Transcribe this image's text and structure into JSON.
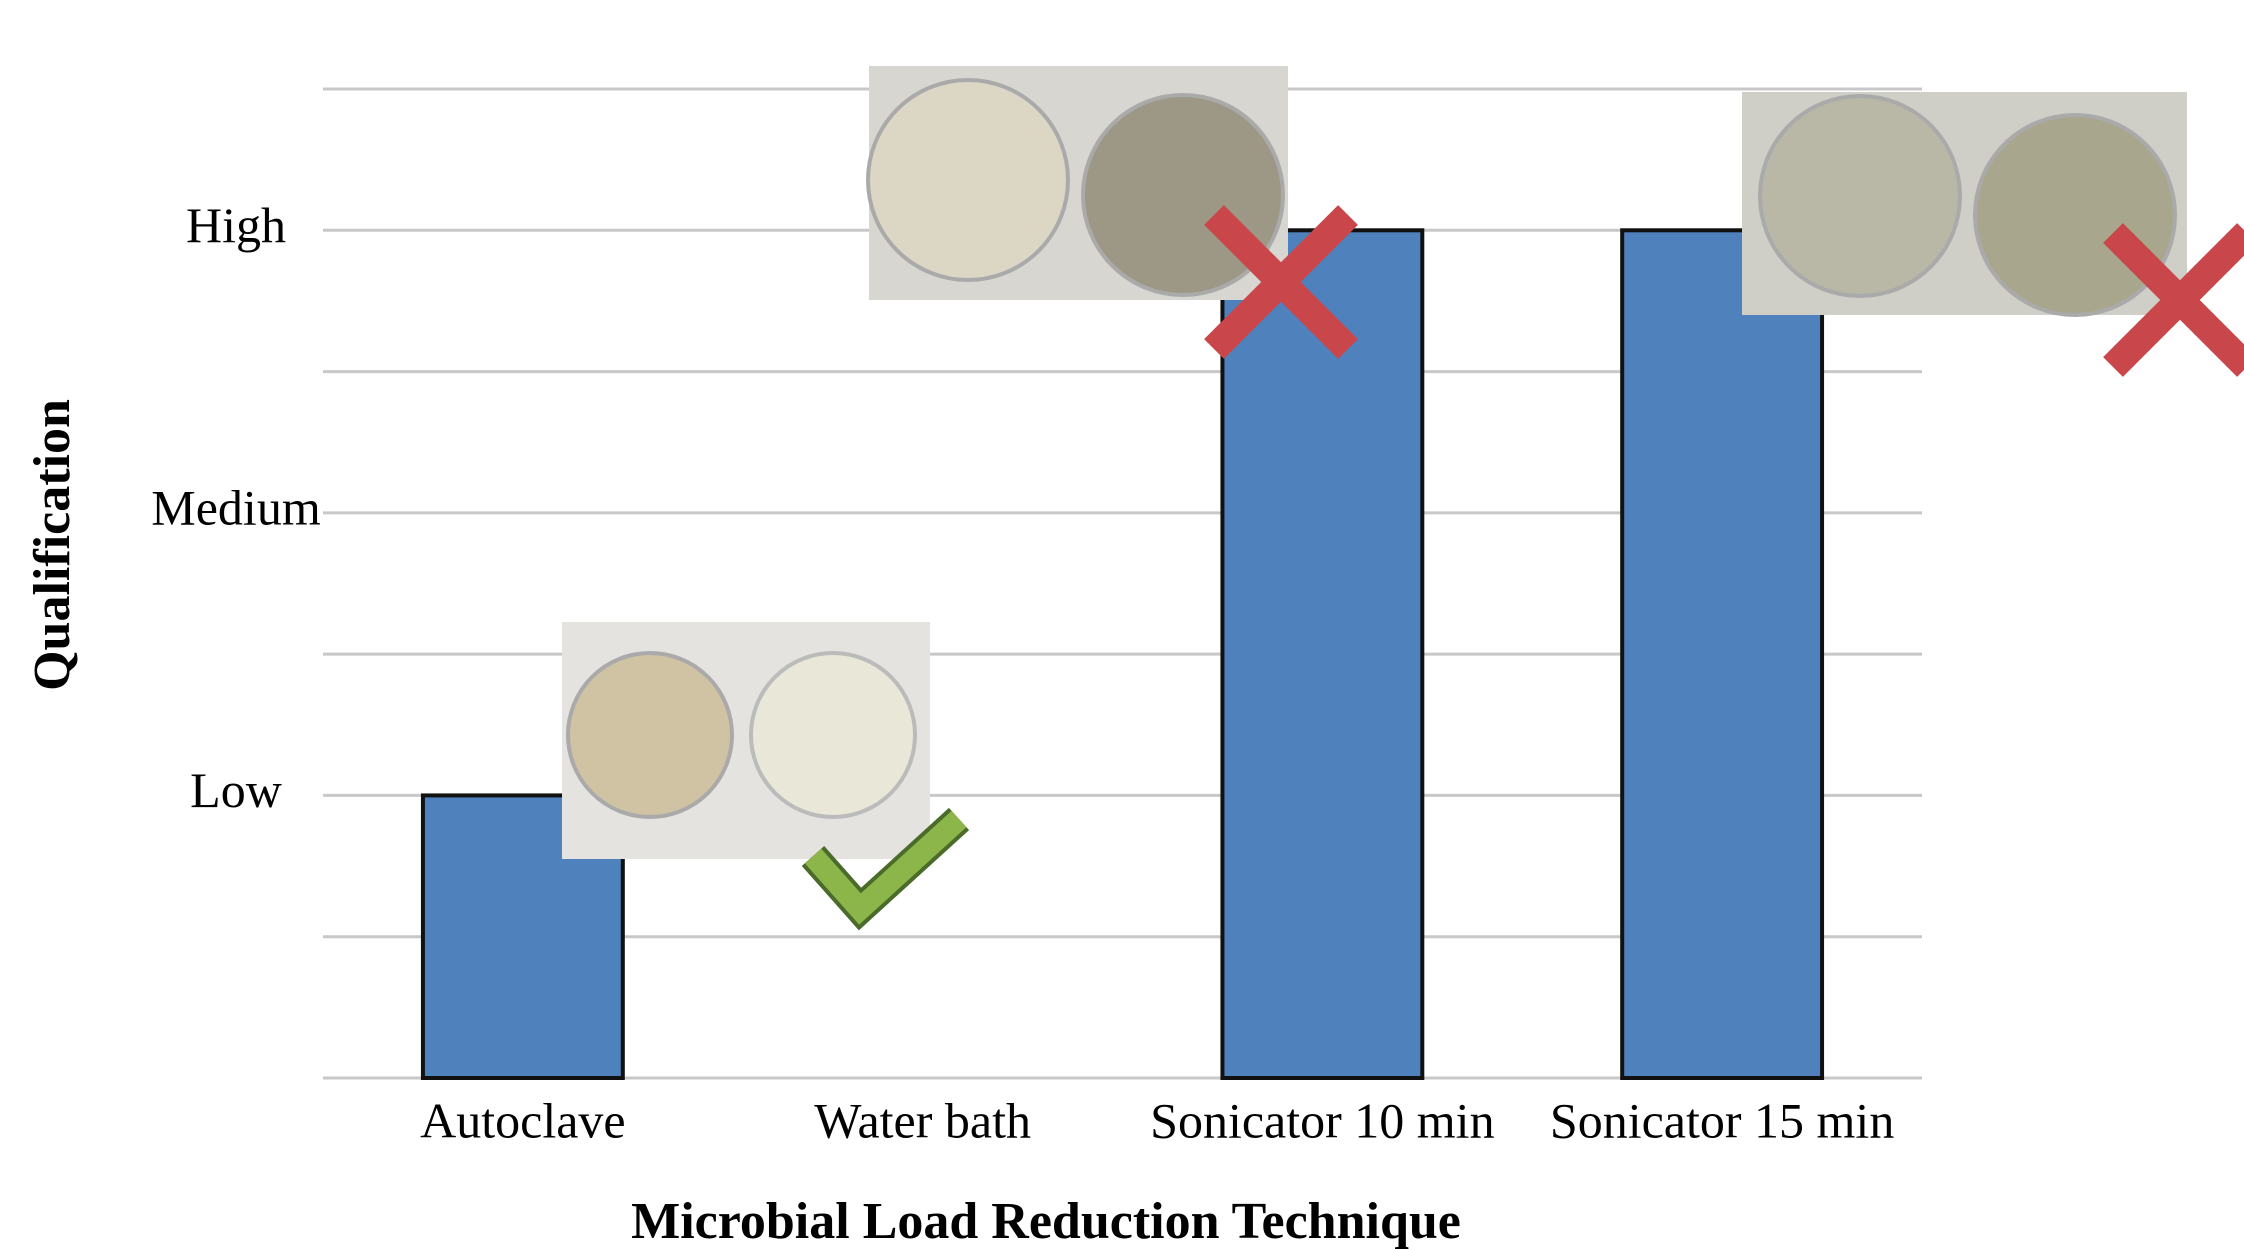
{
  "chart_data": {
    "type": "bar",
    "categories": [
      "Autoclave",
      "Water bath",
      "Sonicator 10 min",
      "Sonicator 15 min"
    ],
    "values": [
      2,
      0,
      6,
      6
    ],
    "color": "#4f81bd",
    "ylim": [
      0,
      7
    ],
    "yticks": [
      {
        "value": 0,
        "label": null
      },
      {
        "value": 1,
        "label": null
      },
      {
        "value": 2,
        "label": "Low"
      },
      {
        "value": 3,
        "label": null
      },
      {
        "value": 4,
        "label": "Medium"
      },
      {
        "value": 5,
        "label": null
      },
      {
        "value": 6,
        "label": "High"
      },
      {
        "value": 7,
        "label": null
      }
    ],
    "grid": true,
    "xlabel": "Microbial Load Reduction Technique",
    "ylabel": "Qualification"
  }
}
